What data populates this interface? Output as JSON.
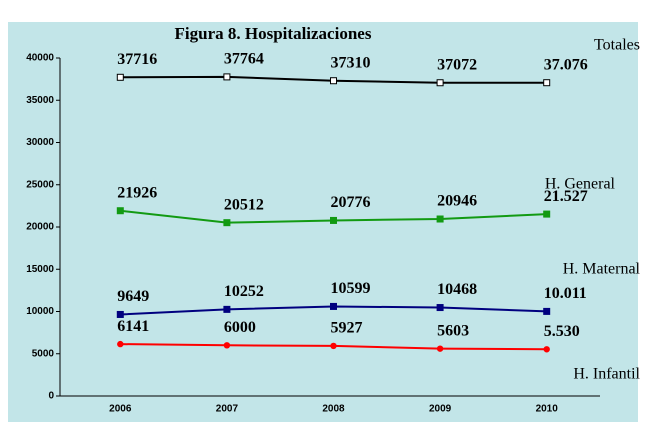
{
  "chart_data": {
    "type": "line",
    "title": "Figura 8. Hospitalizaciones",
    "categories": [
      "2006",
      "2007",
      "2008",
      "2009",
      "2010"
    ],
    "ylim": [
      0,
      40000
    ],
    "yticks": [
      0,
      5000,
      10000,
      15000,
      20000,
      25000,
      30000,
      35000,
      40000
    ],
    "grid": false,
    "series": [
      {
        "name": "Totales",
        "color": "#000000",
        "marker": "hollow-square",
        "values": [
          37716,
          37764,
          37310,
          37072,
          37076
        ],
        "value_labels": [
          "37716",
          "37764",
          "37310",
          "37072",
          "37.076"
        ]
      },
      {
        "name": "H. General",
        "color": "#129a12",
        "marker": "square",
        "values": [
          21926,
          20512,
          20776,
          20946,
          21527
        ],
        "value_labels": [
          "21926",
          "20512",
          "20776",
          "20946",
          "21.527"
        ]
      },
      {
        "name": "H. Maternal",
        "color": "#00007f",
        "marker": "square",
        "values": [
          9649,
          10252,
          10599,
          10468,
          10011
        ],
        "value_labels": [
          "9649",
          "10252",
          "10599",
          "10468",
          "10.011"
        ]
      },
      {
        "name": "H. Infantil",
        "color": "#ff0000",
        "marker": "circle",
        "values": [
          6141,
          6000,
          5927,
          5603,
          5530
        ],
        "value_labels": [
          "6141",
          "6000",
          "5927",
          "5603",
          "5.530"
        ]
      }
    ]
  }
}
